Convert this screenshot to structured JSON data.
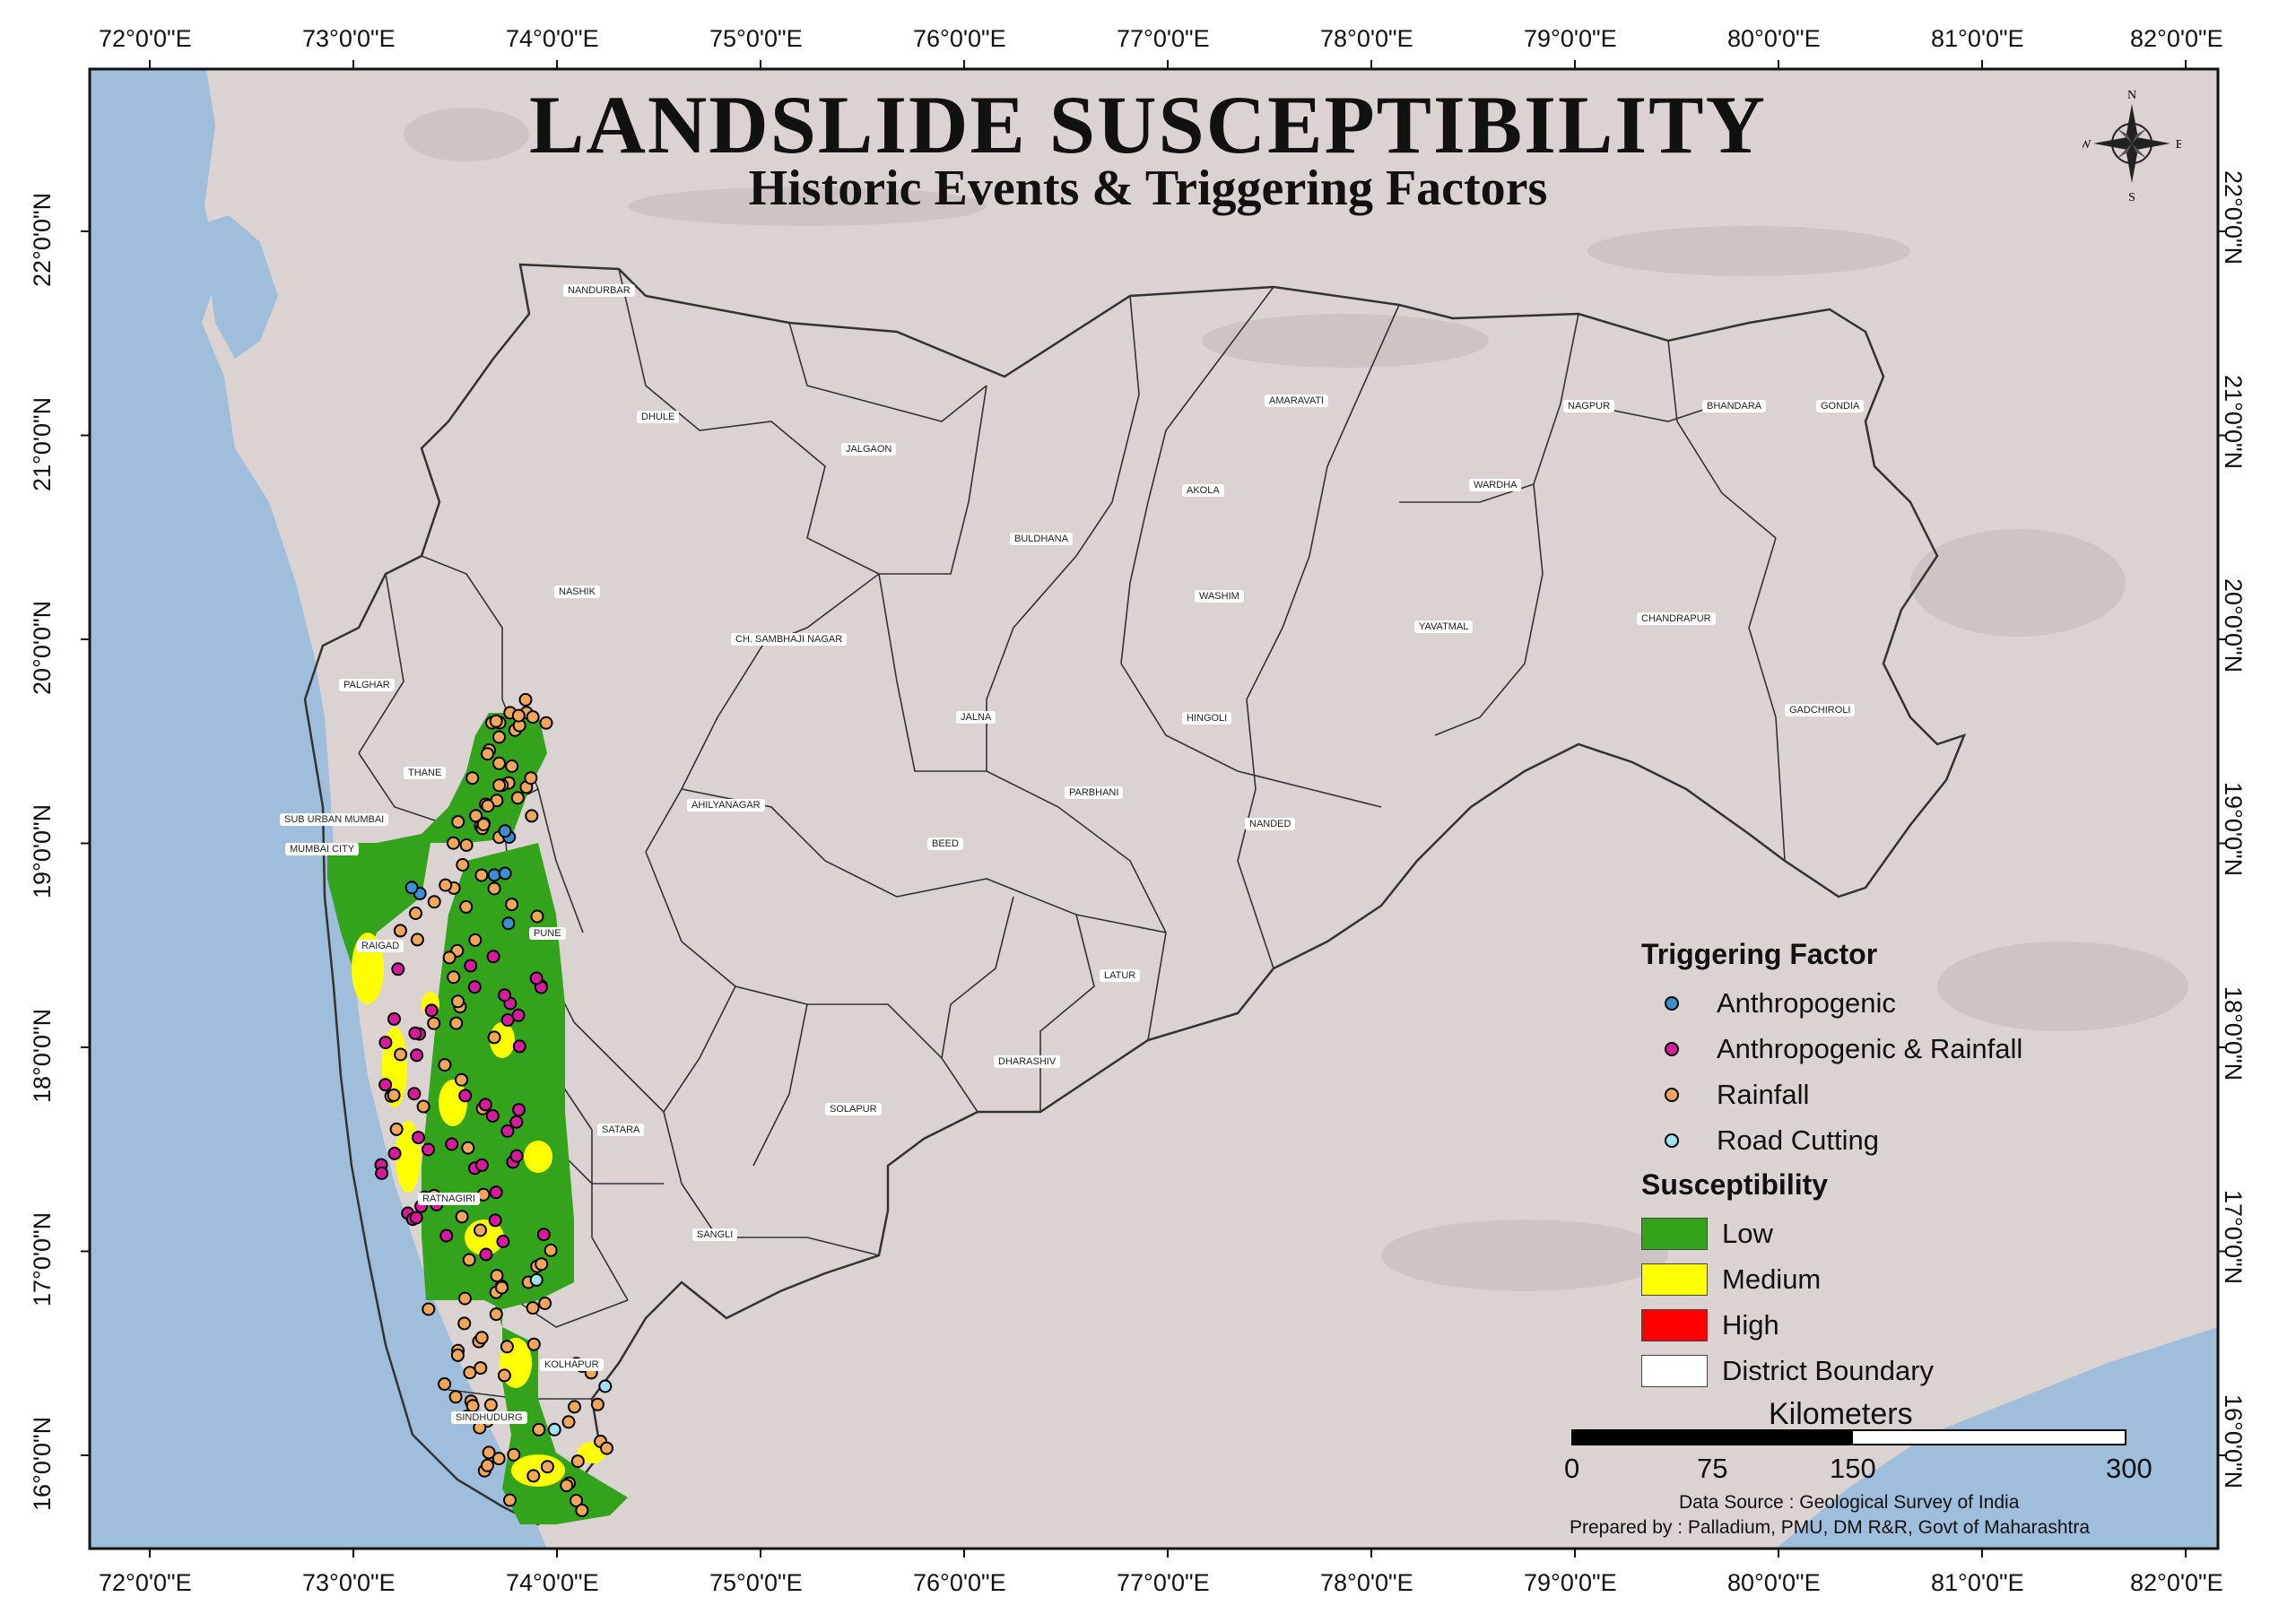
{
  "title": "LANDSLIDE SUSCEPTIBILITY",
  "subtitle": "Historic Events & Triggering Factors",
  "longitude_labels": [
    "72°0'0\"E",
    "73°0'0\"E",
    "74°0'0\"E",
    "75°0'0\"E",
    "76°0'0\"E",
    "77°0'0\"E",
    "78°0'0\"E",
    "79°0'0\"E",
    "80°0'0\"E",
    "81°0'0\"E",
    "82°0'0\"E"
  ],
  "latitude_labels": [
    "22°0'0\"N",
    "21°0'0\"N",
    "20°0'0\"N",
    "19°0'0\"N",
    "18°0'0\"N",
    "17°0'0\"N",
    "16°0'0\"N"
  ],
  "districts": [
    "NANDURBAR",
    "DHULE",
    "JALGAON",
    "AMARAVATI",
    "NAGPUR",
    "BHANDARA",
    "GONDIA",
    "AKOLA",
    "WARDHA",
    "BULDHANA",
    "NASHIK",
    "WASHIM",
    "YAVATMAL",
    "CHANDRAPUR",
    "CH. SAMBHAJI NAGAR",
    "PALGHAR",
    "JALNA",
    "HINGOLI",
    "GADCHIROLI",
    "THANE",
    "AHILYANAGAR",
    "PARBHANI",
    "SUB URBAN MUMBAI",
    "MUMBAI CITY",
    "BEED",
    "NANDED",
    "PUNE",
    "RAIGAD",
    "LATUR",
    "DHARASHIV",
    "SOLAPUR",
    "SATARA",
    "RATNAGIRI",
    "SANGLI",
    "KOLHAPUR",
    "SINDHUDURG"
  ],
  "compass": {
    "n": "N",
    "s": "S",
    "e": "E",
    "w": "W"
  },
  "legend": {
    "triggering_title": "Triggering Factor",
    "triggering": [
      {
        "label": "Anthropogenic",
        "color": "#3b8fd0"
      },
      {
        "label": "Anthropogenic & Rainfall",
        "color": "#d81b9c"
      },
      {
        "label": "Rainfall",
        "color": "#f2a65a"
      },
      {
        "label": "Road Cutting",
        "color": "#9fe3f2"
      }
    ],
    "susceptibility_title": "Susceptibility",
    "susceptibility": [
      {
        "label": "Low",
        "color": "#33a31c"
      },
      {
        "label": "Medium",
        "color": "#ffff00"
      },
      {
        "label": "High",
        "color": "#ff0000"
      },
      {
        "label": "District Boundary",
        "color": "#ffffff"
      }
    ]
  },
  "scale": {
    "title": "Kilometers",
    "ticks": [
      "0",
      "75",
      "150",
      "300"
    ]
  },
  "credits": {
    "source": "Data Source : Geological Survey of India",
    "prepared": "Prepared by : Palladium, PMU, DM R&R, Govt of Maharashtra"
  },
  "colors": {
    "sea": "#9fbedb",
    "land": "#dcd3d3",
    "boundary": "#333333"
  }
}
